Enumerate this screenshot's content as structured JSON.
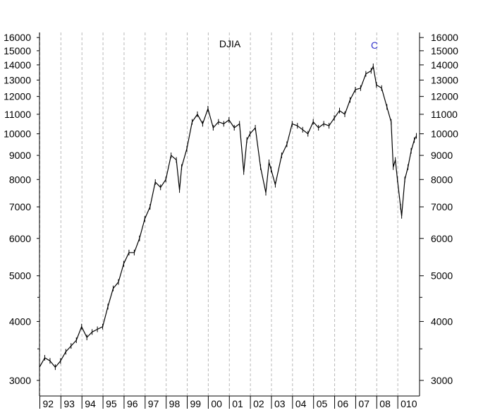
{
  "chart_data": {
    "type": "line",
    "title": "DJIA",
    "annotations": [
      {
        "text": "C",
        "x": 2007.8,
        "y": 14100,
        "color": "#3333cc"
      }
    ],
    "y_scale": "log",
    "ylim": [
      2780,
      16400
    ],
    "xlim": [
      1992.0,
      2010.05
    ],
    "y_ticks": [
      3000,
      4000,
      5000,
      6000,
      7000,
      8000,
      9000,
      10000,
      11000,
      12000,
      13000,
      14000,
      15000,
      16000
    ],
    "y_minor_ticks": [
      3500,
      4500
    ],
    "x_tick_labels": [
      {
        "label": "92",
        "x": 1992
      },
      {
        "label": "93",
        "x": 1993
      },
      {
        "label": "94",
        "x": 1994
      },
      {
        "label": "95",
        "x": 1995
      },
      {
        "label": "96",
        "x": 1996
      },
      {
        "label": "97",
        "x": 1997
      },
      {
        "label": "98",
        "x": 1998
      },
      {
        "label": "99",
        "x": 1999
      },
      {
        "label": "00",
        "x": 2000
      },
      {
        "label": "01",
        "x": 2001
      },
      {
        "label": "02",
        "x": 2002
      },
      {
        "label": "03",
        "x": 2003
      },
      {
        "label": "04",
        "x": 2004
      },
      {
        "label": "05",
        "x": 2005
      },
      {
        "label": "06",
        "x": 2006
      },
      {
        "label": "07",
        "x": 2007
      },
      {
        "label": "08",
        "x": 2008
      },
      {
        "label": "010",
        "x": 2009
      }
    ],
    "grid": "vertical dashed at year starts",
    "series": [
      {
        "values": [
          [
            1992.0,
            3200
          ],
          [
            1992.25,
            3350
          ],
          [
            1992.5,
            3300
          ],
          [
            1992.75,
            3200
          ],
          [
            1993.0,
            3300
          ],
          [
            1993.25,
            3450
          ],
          [
            1993.5,
            3550
          ],
          [
            1993.75,
            3650
          ],
          [
            1994.0,
            3900
          ],
          [
            1994.25,
            3700
          ],
          [
            1994.5,
            3800
          ],
          [
            1994.75,
            3850
          ],
          [
            1995.0,
            3900
          ],
          [
            1995.25,
            4300
          ],
          [
            1995.5,
            4700
          ],
          [
            1995.75,
            4850
          ],
          [
            1996.0,
            5300
          ],
          [
            1996.25,
            5600
          ],
          [
            1996.5,
            5600
          ],
          [
            1996.75,
            6000
          ],
          [
            1997.0,
            6600
          ],
          [
            1997.25,
            7000
          ],
          [
            1997.5,
            7900
          ],
          [
            1997.75,
            7700
          ],
          [
            1998.0,
            8000
          ],
          [
            1998.25,
            9000
          ],
          [
            1998.5,
            8800
          ],
          [
            1998.65,
            7600
          ],
          [
            1998.75,
            8500
          ],
          [
            1999.0,
            9300
          ],
          [
            1999.25,
            10600
          ],
          [
            1999.5,
            11000
          ],
          [
            1999.75,
            10500
          ],
          [
            2000.0,
            11300
          ],
          [
            2000.25,
            10300
          ],
          [
            2000.5,
            10600
          ],
          [
            2000.75,
            10500
          ],
          [
            2001.0,
            10700
          ],
          [
            2001.25,
            10300
          ],
          [
            2001.5,
            10500
          ],
          [
            2001.7,
            8300
          ],
          [
            2001.85,
            9700
          ],
          [
            2002.0,
            10000
          ],
          [
            2002.25,
            10300
          ],
          [
            2002.5,
            8500
          ],
          [
            2002.75,
            7500
          ],
          [
            2002.9,
            8700
          ],
          [
            2003.0,
            8400
          ],
          [
            2003.2,
            7800
          ],
          [
            2003.5,
            9000
          ],
          [
            2003.75,
            9500
          ],
          [
            2004.0,
            10500
          ],
          [
            2004.25,
            10400
          ],
          [
            2004.5,
            10200
          ],
          [
            2004.75,
            10000
          ],
          [
            2005.0,
            10600
          ],
          [
            2005.25,
            10300
          ],
          [
            2005.5,
            10500
          ],
          [
            2005.75,
            10400
          ],
          [
            2006.0,
            10800
          ],
          [
            2006.25,
            11200
          ],
          [
            2006.5,
            11000
          ],
          [
            2006.75,
            11800
          ],
          [
            2007.0,
            12400
          ],
          [
            2007.25,
            12500
          ],
          [
            2007.5,
            13400
          ],
          [
            2007.75,
            13600
          ],
          [
            2007.85,
            13900
          ],
          [
            2008.0,
            12700
          ],
          [
            2008.25,
            12500
          ],
          [
            2008.5,
            11400
          ],
          [
            2008.7,
            10600
          ],
          [
            2008.8,
            8500
          ],
          [
            2008.9,
            8800
          ],
          [
            2009.0,
            8000
          ],
          [
            2009.15,
            7000
          ],
          [
            2009.2,
            6700
          ],
          [
            2009.35,
            8000
          ],
          [
            2009.5,
            8500
          ],
          [
            2009.65,
            9200
          ],
          [
            2009.8,
            9700
          ],
          [
            2009.9,
            9900
          ]
        ]
      }
    ]
  }
}
